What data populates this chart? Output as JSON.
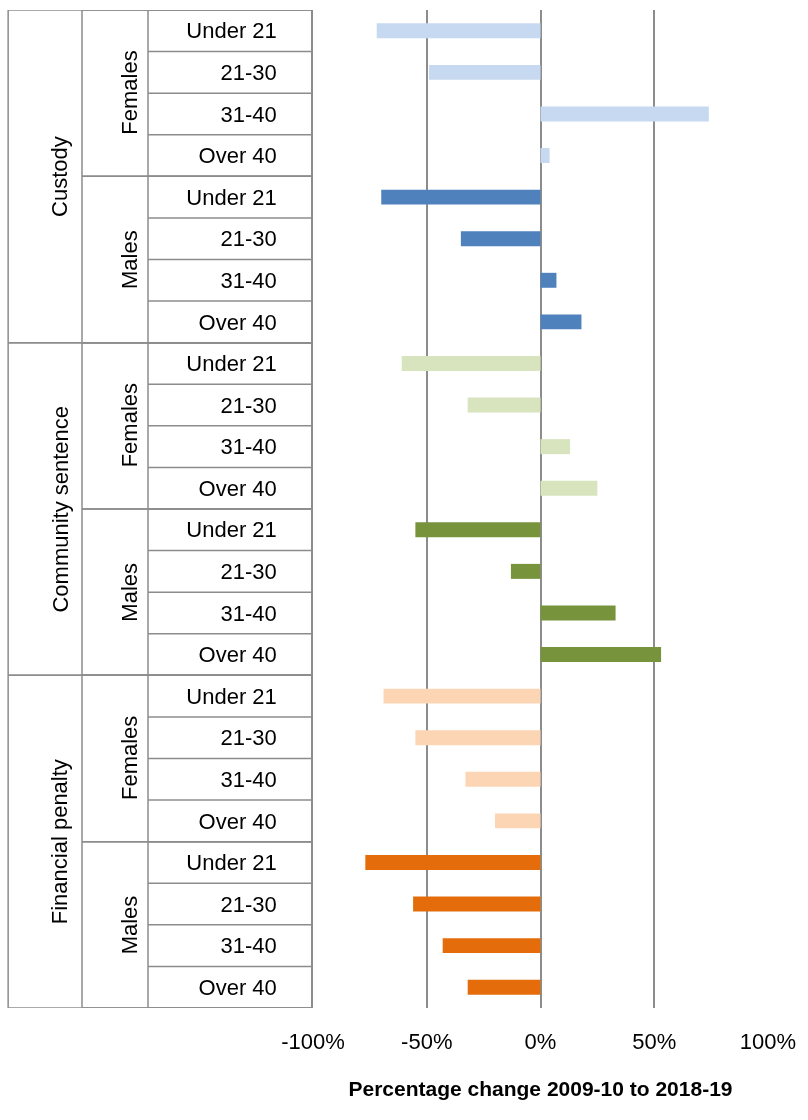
{
  "chart_data": {
    "type": "bar",
    "orientation": "horizontal",
    "xlabel": "Percentage change 2009-10 to 2018-19",
    "categories": [
      "Under 21",
      "21-30",
      "31-40",
      "Over 40",
      "Under 21",
      "21-30",
      "31-40",
      "Over 40",
      "Under 21",
      "21-30",
      "31-40",
      "Over 40",
      "Under 21",
      "21-30",
      "31-40",
      "Over 40",
      "Under 21",
      "21-30",
      "31-40",
      "Over 40",
      "Under 21",
      "21-30",
      "31-40",
      "Over 40"
    ],
    "series": [
      {
        "color": "#c6d9f1",
        "values": [
          -72,
          -49,
          74,
          4,
          null,
          null,
          null,
          null,
          null,
          null,
          null,
          null,
          null,
          null,
          null,
          null,
          null,
          null,
          null,
          null,
          null,
          null,
          null,
          null
        ]
      },
      {
        "color": "#4f81bd",
        "values": [
          null,
          null,
          null,
          null,
          -70,
          -35,
          7,
          18,
          null,
          null,
          null,
          null,
          null,
          null,
          null,
          null,
          null,
          null,
          null,
          null,
          null,
          null,
          null,
          null
        ]
      },
      {
        "color": "#d7e4bd",
        "values": [
          null,
          null,
          null,
          null,
          null,
          null,
          null,
          null,
          -61,
          -32,
          13,
          25,
          null,
          null,
          null,
          null,
          null,
          null,
          null,
          null,
          null,
          null,
          null,
          null
        ]
      },
      {
        "color": "#77933c",
        "values": [
          null,
          null,
          null,
          null,
          null,
          null,
          null,
          null,
          null,
          null,
          null,
          null,
          -55,
          -13,
          33,
          53,
          null,
          null,
          null,
          null,
          null,
          null,
          null,
          null
        ]
      },
      {
        "color": "#fcd5b5",
        "values": [
          null,
          null,
          null,
          null,
          null,
          null,
          null,
          null,
          null,
          null,
          null,
          null,
          null,
          null,
          null,
          null,
          -69,
          -55,
          -33,
          -20,
          null,
          null,
          null,
          null
        ]
      },
      {
        "color": "#e46c0a",
        "values": [
          null,
          null,
          null,
          null,
          null,
          null,
          null,
          null,
          null,
          null,
          null,
          null,
          null,
          null,
          null,
          null,
          null,
          null,
          null,
          null,
          -77,
          -56,
          -43,
          -32
        ]
      }
    ],
    "annotations": [
      "Custody",
      "Females",
      "Males",
      "Community sentence",
      "Females",
      "Males",
      "Financial penalty",
      "Females",
      "Males"
    ],
    "xlim": [
      -100,
      100
    ],
    "xticks": [
      {
        "value": -100,
        "label": "-100%"
      },
      {
        "value": -50,
        "label": "-50%"
      },
      {
        "value": 0,
        "label": "0%"
      },
      {
        "value": 50,
        "label": "50%"
      },
      {
        "value": 100,
        "label": "100%"
      }
    ],
    "grid": "x"
  }
}
